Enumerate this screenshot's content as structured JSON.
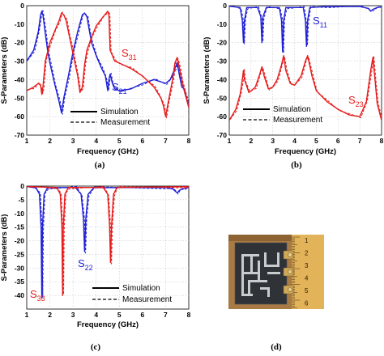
{
  "figure": {
    "captions": [
      "(a)",
      "(b)",
      "(c)",
      "(d)"
    ]
  },
  "colors": {
    "blue": "#1f1fd6",
    "red": "#e61c1c",
    "photo_bg": "#a87a44",
    "board": "#2f3338",
    "ruler": "#e3b35a"
  },
  "chart_data": [
    {
      "type": "line",
      "panel": "a",
      "ylabel": "S-Parameters (dB)",
      "xlabel": "Frequency (GHz)",
      "xlim": [
        1,
        8
      ],
      "ylim": [
        -70,
        0
      ],
      "xticks": [
        1,
        2,
        3,
        4,
        5,
        6,
        7,
        8
      ],
      "yticks": [
        0,
        -10,
        -20,
        -30,
        -40,
        -50,
        -60,
        -70
      ],
      "grid": true,
      "legend": {
        "position": "bottom-center",
        "entries": [
          "Simulation",
          "Measurement"
        ]
      },
      "series": [
        {
          "name": "S21",
          "color": "blue",
          "x": [
            1.0,
            1.3,
            1.5,
            1.6,
            1.65,
            1.7,
            1.8,
            1.9,
            2.0,
            2.2,
            2.4,
            2.5,
            2.6,
            2.8,
            3.0,
            3.2,
            3.4,
            3.5,
            3.6,
            3.7,
            3.8,
            4.0,
            4.2,
            4.4,
            4.5,
            4.55,
            4.6,
            4.7,
            4.8,
            5.0,
            5.5,
            6.0,
            6.5,
            7.0,
            7.2,
            7.4,
            7.5,
            7.6,
            7.7,
            7.8,
            7.9,
            8.0
          ],
          "y": [
            -30,
            -24,
            -14,
            -5,
            -3,
            -5,
            -15,
            -24,
            -31,
            -42,
            -52,
            -58,
            -50,
            -38,
            -25,
            -14,
            -5,
            -4,
            -6,
            -13,
            -20,
            -27,
            -33,
            -38,
            -46,
            -40,
            -37,
            -42,
            -45,
            -46,
            -45,
            -42,
            -40,
            -42,
            -40,
            -34,
            -31,
            -38,
            -44,
            -45,
            -50,
            -55
          ]
        },
        {
          "name": "S31",
          "color": "red",
          "x": [
            1.0,
            1.3,
            1.5,
            1.6,
            1.65,
            1.7,
            1.8,
            2.0,
            2.2,
            2.4,
            2.5,
            2.6,
            2.7,
            2.8,
            3.0,
            3.2,
            3.3,
            3.4,
            3.5,
            3.6,
            3.8,
            4.0,
            4.3,
            4.5,
            4.55,
            4.6,
            4.8,
            5.0,
            5.5,
            6.0,
            6.5,
            6.8,
            6.9,
            7.0,
            7.1,
            7.3,
            7.4,
            7.5,
            7.6,
            7.7,
            7.8,
            8.0
          ],
          "y": [
            -46,
            -44,
            -42,
            -43,
            -48,
            -44,
            -30,
            -20,
            -14,
            -8,
            -4,
            -5,
            -8,
            -14,
            -26,
            -38,
            -47,
            -44,
            -32,
            -24,
            -17,
            -11,
            -6,
            -3,
            -5,
            -24,
            -30,
            -31,
            -34,
            -38,
            -44,
            -50,
            -54,
            -60,
            -53,
            -40,
            -31,
            -28,
            -34,
            -40,
            -46,
            -55
          ]
        }
      ],
      "annotations": [
        "S31",
        "S21"
      ]
    },
    {
      "type": "line",
      "panel": "b",
      "ylabel": "S-Parameters (dB)",
      "xlabel": "Frequency (GHz)",
      "xlim": [
        1,
        8
      ],
      "ylim": [
        -70,
        0
      ],
      "xticks": [
        1,
        2,
        3,
        4,
        5,
        6,
        7,
        8
      ],
      "yticks": [
        0,
        -10,
        -20,
        -30,
        -40,
        -50,
        -60,
        -70
      ],
      "grid": true,
      "legend": {
        "position": "bottom-center",
        "entries": [
          "Simulation",
          "Measurement"
        ]
      },
      "series": [
        {
          "name": "S11",
          "color": "blue",
          "x": [
            1.0,
            1.5,
            1.6,
            1.65,
            1.7,
            1.8,
            2.3,
            2.45,
            2.5,
            2.55,
            2.7,
            3.3,
            3.4,
            3.45,
            3.5,
            3.6,
            4.4,
            4.5,
            4.55,
            4.6,
            4.7,
            5.5,
            7.0,
            7.4,
            7.5,
            7.6,
            7.8,
            8.0
          ],
          "y": [
            -0.3,
            -1,
            -8,
            -20,
            -8,
            -1,
            -1,
            -6,
            -20,
            -6,
            -1,
            -1,
            -8,
            -25,
            -8,
            -1,
            -1,
            -8,
            -22,
            -8,
            -1,
            -0.4,
            -0.5,
            -1.5,
            -3,
            -2,
            -1,
            -0.6
          ]
        },
        {
          "name": "S23",
          "color": "red",
          "x": [
            1.0,
            1.3,
            1.5,
            1.6,
            1.65,
            1.7,
            1.9,
            2.2,
            2.4,
            2.5,
            2.6,
            2.8,
            3.0,
            3.2,
            3.4,
            3.5,
            3.6,
            3.8,
            4.0,
            4.3,
            4.5,
            4.6,
            4.8,
            5.0,
            5.5,
            6.0,
            6.5,
            7.0,
            7.3,
            7.5,
            7.6,
            7.7,
            7.8,
            8.0
          ],
          "y": [
            -62,
            -56,
            -48,
            -40,
            -35,
            -40,
            -47,
            -44,
            -37,
            -33,
            -38,
            -45,
            -44,
            -40,
            -32,
            -27,
            -35,
            -42,
            -43,
            -38,
            -30,
            -27,
            -38,
            -46,
            -52,
            -56,
            -59,
            -60,
            -52,
            -35,
            -28,
            -40,
            -53,
            -62
          ]
        }
      ],
      "annotations": [
        "S11",
        "S23"
      ]
    },
    {
      "type": "line",
      "panel": "c",
      "ylabel": "S-Parameters (dB)",
      "xlabel": "Frequency (GHz)",
      "xlim": [
        1,
        8
      ],
      "ylim": [
        -45,
        0
      ],
      "xticks": [
        1,
        2,
        3,
        4,
        5,
        6,
        7,
        8
      ],
      "yticks": [
        0,
        -5,
        -10,
        -15,
        -20,
        -25,
        -30,
        -35,
        -40
      ],
      "grid": true,
      "legend": {
        "position": "bottom-right",
        "entries": [
          "Simulation",
          "Measurement"
        ]
      },
      "series": [
        {
          "name": "S22",
          "color": "blue",
          "x": [
            1.0,
            1.4,
            1.55,
            1.62,
            1.65,
            1.68,
            1.75,
            1.9,
            3.1,
            3.35,
            3.45,
            3.5,
            3.55,
            3.65,
            3.9,
            7.0,
            7.3,
            7.5,
            7.6,
            7.8,
            8.0
          ],
          "y": [
            -0.2,
            -0.6,
            -3,
            -15,
            -41,
            -15,
            -3,
            -0.6,
            -0.5,
            -3,
            -12,
            -24,
            -12,
            -3,
            -0.6,
            -0.5,
            -1,
            -2.5,
            -1.5,
            -0.8,
            -0.5
          ]
        },
        {
          "name": "S33",
          "color": "red",
          "x": [
            1.0,
            2.3,
            2.45,
            2.52,
            2.55,
            2.58,
            2.65,
            2.8,
            4.3,
            4.5,
            4.58,
            4.62,
            4.66,
            4.75,
            4.9,
            8.0
          ],
          "y": [
            -0.2,
            -0.5,
            -3,
            -15,
            -40,
            -15,
            -3,
            -0.5,
            -0.5,
            -3,
            -15,
            -28,
            -15,
            -3,
            -0.5,
            -0.2
          ]
        }
      ],
      "annotations": [
        "S22",
        "S33"
      ]
    }
  ],
  "labels": {
    "a": {
      "S31": "S",
      "S31sub": "31",
      "S21": "S",
      "S21sub": "21"
    },
    "b": {
      "S11": "S",
      "S11sub": "11",
      "S23": "S",
      "S23sub": "23"
    },
    "c": {
      "S22": "S",
      "S22sub": "22",
      "S33": "S",
      "S33sub": "33"
    }
  },
  "photo": {
    "ruler_numbers": [
      "1",
      "2",
      "3",
      "4",
      "5",
      "6"
    ]
  }
}
